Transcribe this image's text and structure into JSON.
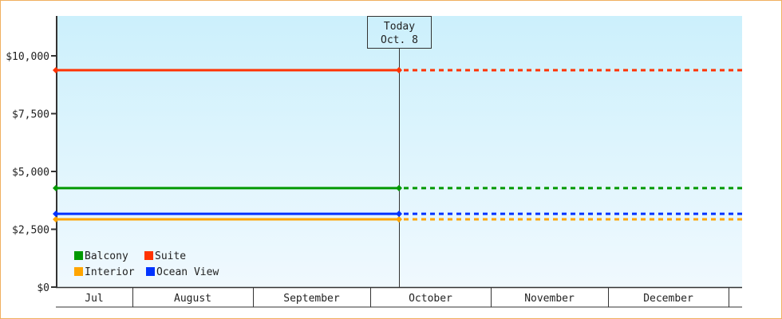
{
  "chart_data": {
    "type": "line",
    "title": "",
    "xlabel": "",
    "ylabel": "",
    "ylim": [
      0,
      11800
    ],
    "y_ticks": [
      "$0",
      "$2,500",
      "$5,000",
      "$7,500",
      "$10,000"
    ],
    "y_tick_values": [
      0,
      2500,
      5000,
      7500,
      10000
    ],
    "x_months": [
      "Jul",
      "August",
      "September",
      "October",
      "November",
      "December"
    ],
    "x_range": [
      "Jul 11",
      "Jan 3"
    ],
    "today": {
      "label": "Today",
      "date": "Oct. 8"
    },
    "grid": false,
    "legend_position": "bottom-left",
    "series": [
      {
        "name": "Balcony",
        "color": "#009900",
        "actual": [
          [
            "Jul 11",
            4280
          ],
          [
            "Oct 8",
            4280
          ]
        ],
        "projected": 4280
      },
      {
        "name": "Suite",
        "color": "#ff3300",
        "actual": [
          [
            "Jul 11",
            9380
          ],
          [
            "Oct 8",
            9380
          ]
        ],
        "projected": 9380
      },
      {
        "name": "Interior",
        "color": "#ffa500",
        "actual": [
          [
            "Jul 11",
            2930
          ],
          [
            "Oct 8",
            2930
          ]
        ],
        "projected": 2930
      },
      {
        "name": "Ocean View",
        "color": "#0033ff",
        "actual": [
          [
            "Jul 11",
            3170
          ],
          [
            "Oct 8",
            3170
          ]
        ],
        "projected": 3170
      }
    ],
    "background_gradient": [
      "#ccf0fc",
      "#f0f9fe"
    ]
  }
}
